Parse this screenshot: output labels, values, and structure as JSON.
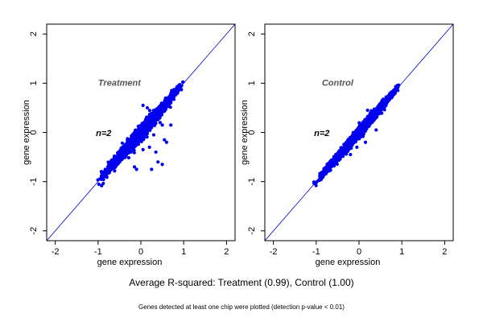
{
  "colors": {
    "points": "#0000ee",
    "line": "#0000cc",
    "axis": "#000000"
  },
  "footer": {
    "main": "Average R-squared: Treatment (0.99), Control (1.00)",
    "note": "Genes detected at least one chip were plotted (detection p-value < 0.01)"
  },
  "chart_data": [
    {
      "type": "scatter",
      "title": "Treatment",
      "annotation": "n=2",
      "xlabel": "gene expression",
      "ylabel": "gene expression",
      "xlim": [
        -2.2,
        2.2
      ],
      "ylim": [
        -2.2,
        2.2
      ],
      "xticks": [
        -2,
        -1,
        0,
        1,
        2
      ],
      "yticks": [
        -2,
        -1,
        0,
        1,
        2
      ],
      "reference_line": "y = x",
      "r_squared": 0.99,
      "cloud": {
        "x_range": [
          -1.1,
          1.12
        ],
        "spread_sd": 0.055
      },
      "outliers": [
        [
          0.05,
          0.55
        ],
        [
          0.15,
          0.5
        ],
        [
          0.25,
          0.1
        ],
        [
          0.3,
          -0.05
        ],
        [
          0.45,
          0.2
        ],
        [
          0.5,
          0.15
        ],
        [
          0.55,
          -0.15
        ],
        [
          0.4,
          -0.6
        ],
        [
          0.5,
          -0.65
        ],
        [
          0.25,
          -0.75
        ],
        [
          -0.15,
          -0.7
        ],
        [
          -0.1,
          -0.75
        ],
        [
          0.05,
          -0.35
        ],
        [
          0.2,
          -0.3
        ],
        [
          0.35,
          -0.4
        ],
        [
          0.7,
          0.15
        ],
        [
          0.6,
          -0.2
        ]
      ]
    },
    {
      "type": "scatter",
      "title": "Control",
      "annotation": "n=2",
      "xlabel": "gene expression",
      "ylabel": "gene expression",
      "xlim": [
        -2.2,
        2.2
      ],
      "ylim": [
        -2.2,
        2.2
      ],
      "xticks": [
        -2,
        -1,
        0,
        1,
        2
      ],
      "yticks": [
        -2,
        -1,
        0,
        1,
        2
      ],
      "reference_line": "y = x",
      "r_squared": 1.0,
      "cloud": {
        "x_range": [
          -1.15,
          1.1
        ],
        "spread_sd": 0.04
      },
      "outliers": [
        [
          0.4,
          0.05
        ],
        [
          0.35,
          0.25
        ],
        [
          0.2,
          0.45
        ],
        [
          -0.2,
          -0.45
        ],
        [
          0.15,
          -0.2
        ],
        [
          -0.05,
          -0.3
        ]
      ]
    }
  ]
}
